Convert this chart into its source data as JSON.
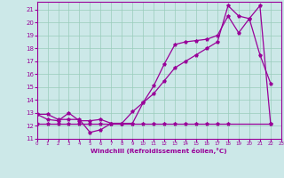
{
  "bg_color": "#cce8e8",
  "grid_color": "#99ccbb",
  "line_color": "#990099",
  "xlabel": "Windchill (Refroidissement éolien,°C)",
  "xlim": [
    0,
    23
  ],
  "ylim": [
    11,
    21.6
  ],
  "yticks": [
    11,
    12,
    13,
    14,
    15,
    16,
    17,
    18,
    19,
    20,
    21
  ],
  "xticks": [
    0,
    1,
    2,
    3,
    4,
    5,
    6,
    7,
    8,
    9,
    10,
    11,
    12,
    13,
    14,
    15,
    16,
    17,
    18,
    19,
    20,
    21,
    22,
    23
  ],
  "line1_x": [
    0,
    1,
    2,
    3,
    4,
    5,
    6,
    7,
    8,
    9,
    10,
    11,
    12,
    13,
    14,
    15,
    16,
    17,
    18,
    19,
    20,
    21,
    22
  ],
  "line1_y": [
    12.9,
    12.9,
    12.5,
    12.5,
    12.5,
    11.5,
    11.7,
    12.2,
    12.2,
    13.1,
    13.8,
    15.1,
    16.8,
    18.3,
    18.5,
    18.6,
    18.7,
    19.0,
    20.5,
    19.2,
    20.3,
    17.5,
    15.3
  ],
  "line2_x": [
    0,
    1,
    2,
    3,
    4,
    5,
    6,
    7,
    8,
    9,
    10,
    11,
    12,
    13,
    14,
    15,
    16,
    17,
    18,
    19,
    20,
    21,
    22
  ],
  "line2_y": [
    12.9,
    12.5,
    12.4,
    13.0,
    12.4,
    12.4,
    12.5,
    12.2,
    12.2,
    12.2,
    13.8,
    14.5,
    15.5,
    16.5,
    17.0,
    17.5,
    18.0,
    18.5,
    21.3,
    20.5,
    20.3,
    21.3,
    12.2
  ],
  "line3_x": [
    0,
    1,
    2,
    3,
    4,
    5,
    6,
    7,
    8,
    9,
    10,
    11,
    12,
    13,
    14,
    15,
    16,
    17,
    18,
    22
  ],
  "line3_y": [
    12.2,
    12.2,
    12.2,
    12.2,
    12.2,
    12.2,
    12.2,
    12.2,
    12.2,
    12.2,
    12.2,
    12.2,
    12.2,
    12.2,
    12.2,
    12.2,
    12.2,
    12.2,
    12.2,
    12.2
  ]
}
